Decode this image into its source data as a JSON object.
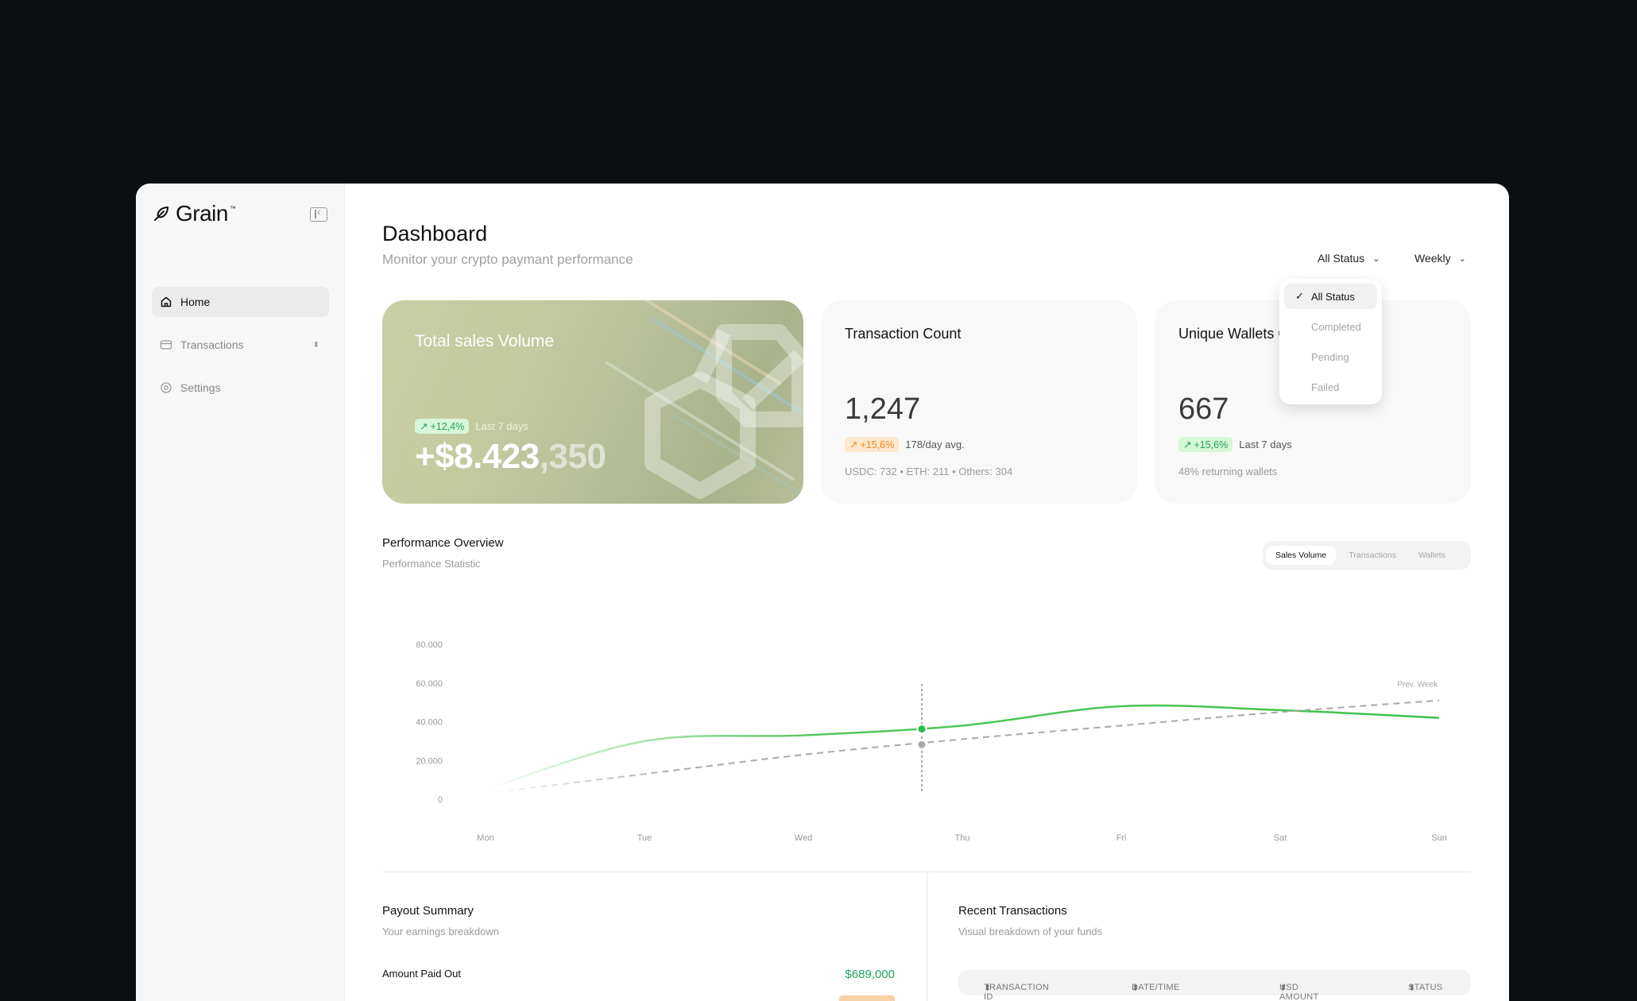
{
  "app": {
    "name": "Grain",
    "tm": "™"
  },
  "sidebar": {
    "items": [
      {
        "label": "Home",
        "icon": "home-icon",
        "active": true
      },
      {
        "label": "Transactions",
        "icon": "card-icon",
        "active": false
      },
      {
        "label": "Settings",
        "icon": "settings-icon",
        "active": false
      }
    ]
  },
  "header": {
    "title": "Dashboard",
    "subtitle": "Monitor your crypto paymant performance",
    "status_filter": "All Status",
    "period_filter": "Weekly"
  },
  "status_dropdown": {
    "options": [
      "All Status",
      "Completed",
      "Pending",
      "Failed"
    ],
    "selected": "All Status"
  },
  "cards": {
    "sales": {
      "title": "Total sales Volume",
      "change": "+12,4%",
      "period": "Last 7 days",
      "amount_main": "+$8.423",
      "amount_frac": ",350"
    },
    "transactions": {
      "title": "Transaction Count",
      "value": "1,247",
      "change": "+15,6%",
      "note": "178/day avg.",
      "footer": "USDC: 732 • ETH: 211 • Others: 304"
    },
    "wallets": {
      "title": "Unique Wallets Connected",
      "value": "667",
      "change": "+15,6%",
      "note": "Last 7 days",
      "footer": "48% returning wallets"
    }
  },
  "performance": {
    "title": "Performance Overview",
    "subtitle": "Performance Statistic",
    "tabs": [
      "Sales Volume",
      "Transactions",
      "Wallets"
    ],
    "active_tab": "Sales Volume"
  },
  "chart_data": {
    "type": "line",
    "x": [
      "Mon",
      "Tue",
      "Wed",
      "Thu",
      "Fri",
      "Sat",
      "Sun"
    ],
    "ylim": [
      0,
      80000
    ],
    "yticks": [
      "80.000",
      "60.000",
      "40.000",
      "20.000",
      "0"
    ],
    "series": [
      {
        "name": "",
        "color": "#3cc24a",
        "values": [
          5000,
          30000,
          33000,
          38000,
          48000,
          46000,
          42000
        ]
      },
      {
        "name": "Prev. Week",
        "color": "#a8a8a8",
        "dashed": true,
        "values": [
          3000,
          13000,
          23000,
          31000,
          38000,
          45000,
          51000
        ]
      }
    ],
    "highlight_day": "Thu",
    "grid": false
  },
  "payout": {
    "title": "Payout Summary",
    "subtitle": "Your earnings breakdown",
    "rows": [
      {
        "label": "Amount Paid Out",
        "value": "$689,000"
      }
    ]
  },
  "recent": {
    "title": "Recent Transactions",
    "subtitle": "Visual breakdown of your funds",
    "columns": [
      "TRANSACTION ID",
      "DATE/TIME",
      "USD AMOUNT",
      "STATUS"
    ]
  }
}
